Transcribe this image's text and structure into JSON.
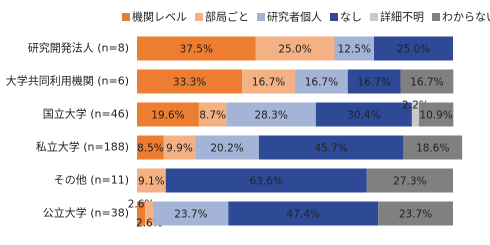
{
  "chart_data": {
    "type": "stacked-bar-horizontal",
    "categories": [
      "研究開発法人 (n=8)",
      "大学共同利用機関 (n=6)",
      "国立大学 (n=46)",
      "私立大学 (n=188)",
      "その他 (n=11)",
      "公立大学 (n=38)"
    ],
    "xlim": [
      0,
      100
    ],
    "legend_position": "top",
    "series": [
      {
        "name": "機関レベル",
        "color": "#ED7D31",
        "label_color": "#ffffff",
        "values": [
          37.5,
          33.3,
          19.6,
          8.5,
          null,
          2.6
        ],
        "value_labels": [
          "37.5%",
          "33.3%",
          "19.6%",
          "8.5%",
          null,
          "2.6%"
        ]
      },
      {
        "name": "部局ごと",
        "color": "#F4B183",
        "label_color": "#ffffff",
        "values": [
          25.0,
          16.7,
          8.7,
          9.9,
          9.1,
          2.6
        ],
        "value_labels": [
          "25.0%",
          "16.7%",
          "8.7%",
          "9.9%",
          "9.1%",
          "2.6%"
        ]
      },
      {
        "name": "研究者個人",
        "color": "#A3B4D6",
        "label_color": "#222222",
        "values": [
          12.5,
          16.7,
          28.3,
          20.2,
          null,
          23.7
        ],
        "value_labels": [
          "12.5%",
          "16.7%",
          "28.3%",
          "20.2%",
          null,
          "23.7%"
        ]
      },
      {
        "name": "なし",
        "color": "#2E4A97",
        "label_color": "#ffffff",
        "values": [
          25.0,
          16.7,
          30.4,
          45.7,
          63.6,
          47.4
        ],
        "value_labels": [
          "25.0%",
          "16.7%",
          "30.4%",
          "45.7%",
          "63.6%",
          "47.4%"
        ]
      },
      {
        "name": "詳細不明",
        "color": "#C9C9C9",
        "label_color": "#444444",
        "values": [
          null,
          null,
          2.2,
          null,
          null,
          null
        ],
        "value_labels": [
          null,
          null,
          "2.2%",
          null,
          null,
          null
        ]
      },
      {
        "name": "わからない",
        "color": "#808080",
        "label_color": "#ffffff",
        "values": [
          null,
          16.7,
          10.9,
          18.6,
          27.3,
          23.7
        ],
        "value_labels": [
          null,
          "16.7%",
          "10.9%",
          "18.6%",
          "27.3%",
          "23.7%"
        ]
      }
    ]
  }
}
